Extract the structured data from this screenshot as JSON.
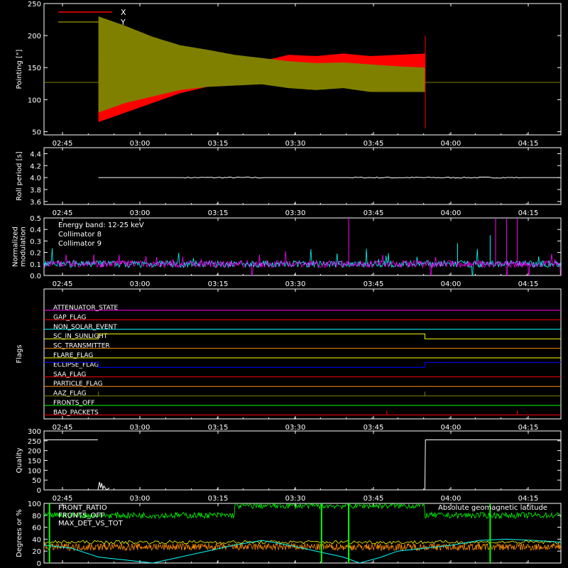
{
  "chart_data": [
    {
      "type": "line",
      "ylabel": "Pointing [\"]",
      "ylim": [
        45,
        250
      ],
      "yticks": [
        50,
        100,
        150,
        200,
        250
      ],
      "xticks": [
        "02:45",
        "03:00",
        "03:15",
        "03:30",
        "03:45",
        "04:00",
        "04:15"
      ],
      "xlim_minutes": [
        -10,
        85
      ],
      "legend": [
        {
          "name": "X",
          "color": "#ff0000"
        },
        {
          "name": "Y",
          "color": "#808000"
        }
      ],
      "baseline": 127,
      "active_range_minutes": [
        0,
        60
      ],
      "series": [
        {
          "name": "X",
          "color": "#ff0000",
          "envelope_x": [
            0,
            5,
            10,
            15,
            20,
            25,
            30,
            35,
            40,
            45,
            50,
            55,
            60
          ],
          "upper": [
            160,
            150,
            140,
            133,
            127,
            140,
            160,
            170,
            168,
            172,
            168,
            170,
            172
          ],
          "lower": [
            65,
            80,
            95,
            110,
            120,
            125,
            125,
            125,
            122,
            125,
            122,
            125,
            125
          ]
        },
        {
          "name": "Y",
          "color": "#808000",
          "envelope_x": [
            0,
            5,
            10,
            15,
            20,
            25,
            30,
            35,
            40,
            45,
            50,
            55,
            60
          ],
          "upper": [
            230,
            215,
            198,
            185,
            178,
            170,
            165,
            160,
            157,
            158,
            155,
            152,
            150
          ],
          "lower": [
            80,
            95,
            105,
            115,
            120,
            122,
            124,
            118,
            115,
            118,
            112,
            112,
            112
          ]
        }
      ]
    },
    {
      "type": "line",
      "ylabel": "Roll period [s]",
      "ylim": [
        3.55,
        4.5
      ],
      "yticks": [
        3.6,
        3.8,
        4.0,
        4.2,
        4.4
      ],
      "ytick_labels": [
        "3.6",
        "3.8",
        "4.0",
        "4.2",
        "4.4"
      ],
      "xticks": [
        "02:45",
        "03:00",
        "03:15",
        "03:30",
        "03:45",
        "04:00",
        "04:15"
      ],
      "series": [
        {
          "name": "",
          "color": "#ffffff",
          "x_range_minutes": [
            0,
            85
          ],
          "value": 4.0
        }
      ]
    },
    {
      "type": "line",
      "ylabel": "Normalized modulation",
      "ylim": [
        0,
        0.5
      ],
      "yticks": [
        0.0,
        0.1,
        0.2,
        0.3,
        0.4,
        0.5
      ],
      "ytick_labels": [
        "0.0",
        "0.1",
        "0.2",
        "0.3",
        "0.4",
        "0.5"
      ],
      "xticks": [
        "02:45",
        "03:00",
        "03:15",
        "03:30",
        "03:45",
        "04:00",
        "04:15"
      ],
      "annotations": [
        "Energy band: 12-25 keV"
      ],
      "series": [
        {
          "name": "Collimator 8",
          "color": "#00ffff",
          "base": 0.1
        },
        {
          "name": "Collimator 9",
          "color": "#ff00ff",
          "base": 0.1
        }
      ],
      "spikes": [
        {
          "series": "Collimator 9",
          "x_minutes": 46,
          "value": 0.5
        },
        {
          "series": "Collimator 9",
          "x_minutes": 73,
          "value": 0.5
        },
        {
          "series": "Collimator 9",
          "x_minutes": 75,
          "value": 0.5
        },
        {
          "series": "Collimator 9",
          "x_minutes": 77,
          "value": 0.5
        },
        {
          "series": "Collimator 8",
          "x_minutes": 66,
          "value": 0.28
        },
        {
          "series": "Collimator 8",
          "x_minutes": 72,
          "value": 0.35
        }
      ]
    },
    {
      "type": "line",
      "ylabel": "Flags",
      "xticks": [
        "02:45",
        "03:00",
        "03:15",
        "03:30",
        "03:45",
        "04:00",
        "04:15"
      ],
      "flags": [
        {
          "name": "ATTENUATOR_STATE",
          "color": "#ff00ff",
          "transitions": []
        },
        {
          "name": "GAP_FLAG",
          "color": "#ff0000",
          "transitions": []
        },
        {
          "name": "NON_SOLAR_EVENT",
          "color": "#00ffff",
          "transitions": []
        },
        {
          "name": "SC_IN_SUNLIGHT",
          "color": "#ffff00",
          "high_range_minutes": [
            0,
            60
          ]
        },
        {
          "name": "SC_TRANSMITTER",
          "color": "#ff8c00",
          "transitions": []
        },
        {
          "name": "FLARE_FLAG",
          "color": "#ffff00",
          "transitions": []
        },
        {
          "name": "ECLIPSE_FLAG",
          "color": "#0000ff",
          "high_ranges_minutes": [
            [
              -10,
              0
            ],
            [
              60,
              85
            ]
          ]
        },
        {
          "name": "SAA_FLAG",
          "color": "#ff0000",
          "transitions": []
        },
        {
          "name": "PARTICLE_FLAG",
          "color": "#ff8c00",
          "transitions": []
        },
        {
          "name": "AAZ_FLAG",
          "color": "#808000",
          "blips_minutes": [
            0,
            60
          ]
        },
        {
          "name": "FRONTS_OFF",
          "color": "#00ff00",
          "transitions": []
        },
        {
          "name": "BAD_PACKETS",
          "color": "#ff0000",
          "blips_minutes": [
            53,
            77
          ]
        }
      ]
    },
    {
      "type": "line",
      "ylabel": "Quality",
      "ylim": [
        0,
        300
      ],
      "yticks": [
        0,
        50,
        100,
        150,
        200,
        250,
        300
      ],
      "xticks": [
        "02:45",
        "03:00",
        "03:15",
        "03:30",
        "03:45",
        "04:00",
        "04:15"
      ],
      "series": [
        {
          "name": "",
          "color": "#ffffff",
          "segments": [
            {
              "x": [
                -10,
                -0.1
              ],
              "y": [
                255,
                255
              ]
            },
            {
              "x": [
                -0.1,
                0.2,
                0.4,
                0.6,
                0.8,
                1,
                1.5,
                2
              ],
              "y": [
                0,
                40,
                10,
                35,
                5,
                20,
                0,
                10
              ]
            },
            {
              "x": [
                60,
                60.1,
                85
              ],
              "y": [
                0,
                255,
                255
              ]
            }
          ]
        }
      ]
    },
    {
      "type": "line",
      "ylabel": "Degrees or %",
      "ylim": [
        0,
        100
      ],
      "yticks": [
        0,
        20,
        40,
        60,
        80,
        100
      ],
      "xticks": [
        "02:45",
        "03:00",
        "03:15",
        "03:30",
        "03:45",
        "04:00",
        "04:15"
      ],
      "annotations": [
        "Absolute geomagnetic latitude"
      ],
      "series": [
        {
          "name": "FRONT_RATIO",
          "color": "#00ff00",
          "base": 80
        },
        {
          "name": "FRONTS_OFF",
          "color": "#00ff00",
          "base": 90
        },
        {
          "name": "MAX_DET_VS_TOT",
          "color": "#ff8c00",
          "base": 27
        },
        {
          "name": "",
          "color": "#ffff00",
          "base": 35
        },
        {
          "name": "Absolute geomagnetic latitude",
          "color": "#00ffff",
          "x": [
            -10,
            -5,
            0,
            5,
            10,
            15,
            20,
            25,
            30,
            35,
            40,
            45,
            48,
            52,
            55,
            60,
            65,
            70,
            75,
            80,
            85
          ],
          "y": [
            30,
            25,
            10,
            5,
            0,
            10,
            20,
            30,
            38,
            30,
            20,
            10,
            0,
            10,
            20,
            25,
            30,
            38,
            40,
            38,
            35
          ]
        }
      ]
    }
  ]
}
